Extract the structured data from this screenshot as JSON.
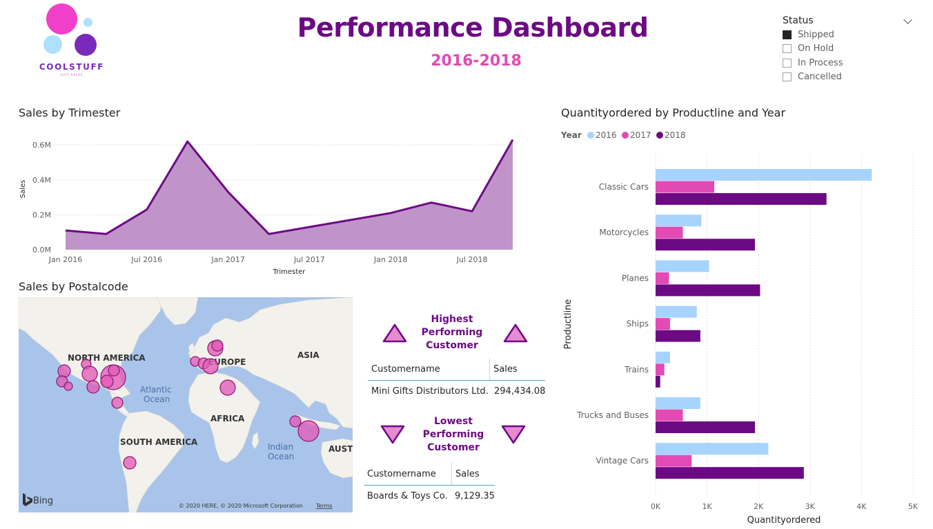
{
  "logo": {
    "name": "COOLSTUFF",
    "tagline": "GIFT SALES",
    "colors": [
      "#f03fc8",
      "#aee0ff",
      "#7a2ab8",
      "#aee0ff"
    ]
  },
  "header": {
    "title": "Performance Dashboard",
    "subtitle": "2016-2018"
  },
  "status_slicer": {
    "title": "Status",
    "items": [
      {
        "label": "Shipped",
        "checked": true
      },
      {
        "label": "On Hold",
        "checked": false
      },
      {
        "label": "In Process",
        "checked": false
      },
      {
        "label": "Cancelled",
        "checked": false
      }
    ]
  },
  "sales_trimester": {
    "title": "Sales by Trimester"
  },
  "quantity_chart": {
    "title": "Quantityordered by Productline and Year",
    "legend_title": "Year"
  },
  "map": {
    "title": "Sales by Postalcode",
    "labels": {
      "north_america": "NORTH AMERICA",
      "europe": "EUROPE",
      "asia": "ASIA",
      "africa": "AFRICA",
      "south_america": "SOUTH AMERICA",
      "austr": "AUSTR",
      "atlantic": "Atlantic",
      "atlantic2": "Ocean",
      "indian": "Indian",
      "indian2": "Ocean"
    },
    "bing": "Bing",
    "copyright": "© 2020 HERE, © 2020 Microsoft Corporation",
    "terms": "Terms"
  },
  "highest": {
    "title_line1": "Highest",
    "title_line2": "Performing",
    "title_line3": "Customer",
    "col1": "Customername",
    "col2": "Sales",
    "customer": "Mini Gifts Distributors Ltd.",
    "sales": "294,434.08"
  },
  "lowest": {
    "title_line1": "Lowest",
    "title_line2": "Performing",
    "title_line3": "Customer",
    "col1": "Customername",
    "col2": "Sales",
    "customer": "Boards & Toys Co.",
    "sales": "9,129.35"
  },
  "colors": {
    "purple_dark": "#6c0a84",
    "pink": "#e24ab4",
    "light_blue": "#a7d3ff",
    "area_fill": "#c094c8",
    "bubble": "#e25bb8"
  },
  "chart_data": [
    {
      "type": "area",
      "title": "Sales by Trimester",
      "xlabel": "Trimester",
      "ylabel": "Sales",
      "x_ticks": [
        "Jan 2016",
        "Jul 2016",
        "Jan 2017",
        "Jul 2017",
        "Jan 2018",
        "Jul 2018"
      ],
      "y_ticks": [
        "0.0M",
        "0.2M",
        "0.4M",
        "0.6M"
      ],
      "ylim": [
        0,
        0.64
      ],
      "x": [
        "2016-01",
        "2016-04",
        "2016-07",
        "2016-10",
        "2017-01",
        "2017-04",
        "2017-07",
        "2017-10",
        "2018-01",
        "2018-04",
        "2018-07",
        "2018-10"
      ],
      "values": [
        0.11,
        0.09,
        0.23,
        0.62,
        0.33,
        0.09,
        0.13,
        0.17,
        0.21,
        0.27,
        0.22,
        0.63
      ],
      "grid": true
    },
    {
      "type": "bar",
      "orientation": "horizontal",
      "title": "Quantityordered by Productline and Year",
      "xlabel": "Quantityordered",
      "ylabel": "Productline",
      "legend_title": "Year",
      "legend_position": "top-left",
      "categories": [
        "Classic Cars",
        "Motorcycles",
        "Planes",
        "Ships",
        "Trains",
        "Trucks and Buses",
        "Vintage Cars"
      ],
      "series": [
        {
          "name": "2016",
          "color": "#a7d3ff",
          "values": [
            4200,
            890,
            1040,
            800,
            280,
            870,
            2190
          ]
        },
        {
          "name": "2017",
          "color": "#e24ab4",
          "values": [
            1140,
            530,
            260,
            280,
            170,
            530,
            700
          ]
        },
        {
          "name": "2018",
          "color": "#6c0a84",
          "values": [
            3320,
            1930,
            2030,
            870,
            90,
            1930,
            2880
          ]
        }
      ],
      "x_ticks": [
        "0K",
        "1K",
        "2K",
        "3K",
        "4K",
        "5K"
      ],
      "xlim": [
        0,
        5000
      ],
      "grid": true
    }
  ]
}
